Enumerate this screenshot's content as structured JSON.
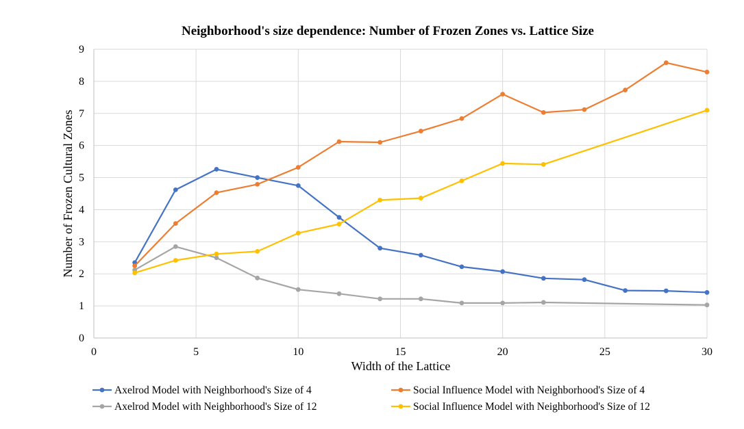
{
  "chart_data": {
    "type": "line",
    "title": "Neighborhood's size dependence: Number of Frozen Zones vs. Lattice Size",
    "xlabel": "Width of the Lattice",
    "ylabel": "Number of Frozen Cultural Zones",
    "xlim": [
      0,
      30
    ],
    "ylim": [
      0,
      9
    ],
    "xticks": [
      0,
      5,
      10,
      15,
      20,
      25,
      30
    ],
    "yticks": [
      0,
      1,
      2,
      3,
      4,
      5,
      6,
      7,
      8,
      9
    ],
    "grid": true,
    "legend_position": "bottom",
    "series": [
      {
        "name": "Axelrod Model with Neighborhood's Size of 4",
        "color": "#4472C4",
        "x": [
          2,
          4,
          6,
          8,
          10,
          12,
          14,
          16,
          18,
          20,
          22,
          24,
          26,
          28,
          30
        ],
        "y": [
          2.35,
          4.62,
          5.26,
          5.0,
          4.75,
          3.76,
          2.8,
          2.58,
          2.22,
          2.07,
          1.86,
          1.82,
          1.48,
          1.47,
          1.42
        ]
      },
      {
        "name": "Social Influence Model with  Neighborhood's Size of 4",
        "color": "#ED7D31",
        "x": [
          2,
          4,
          6,
          8,
          10,
          12,
          14,
          16,
          18,
          20,
          22,
          24,
          26,
          28,
          30
        ],
        "y": [
          2.25,
          3.57,
          4.53,
          4.79,
          5.32,
          6.12,
          6.1,
          6.45,
          6.84,
          7.6,
          7.03,
          7.12,
          7.73,
          8.58,
          8.29
        ]
      },
      {
        "name": "Axelrod Model with  Neighborhood's Size of 12",
        "color": "#A5A5A5",
        "x": [
          2,
          4,
          6,
          8,
          10,
          12,
          14,
          16,
          18,
          20,
          22,
          30
        ],
        "y": [
          2.12,
          2.85,
          2.5,
          1.87,
          1.51,
          1.38,
          1.22,
          1.22,
          1.09,
          1.09,
          1.11,
          1.03
        ]
      },
      {
        "name": "Social Influence Model with  Neighborhood's Size of 12",
        "color": "#FFC000",
        "x": [
          2,
          4,
          6,
          8,
          10,
          12,
          14,
          16,
          18,
          20,
          22,
          30
        ],
        "y": [
          2.03,
          2.42,
          2.62,
          2.7,
          3.27,
          3.55,
          4.3,
          4.36,
          4.9,
          5.44,
          5.41,
          7.1
        ]
      }
    ]
  }
}
